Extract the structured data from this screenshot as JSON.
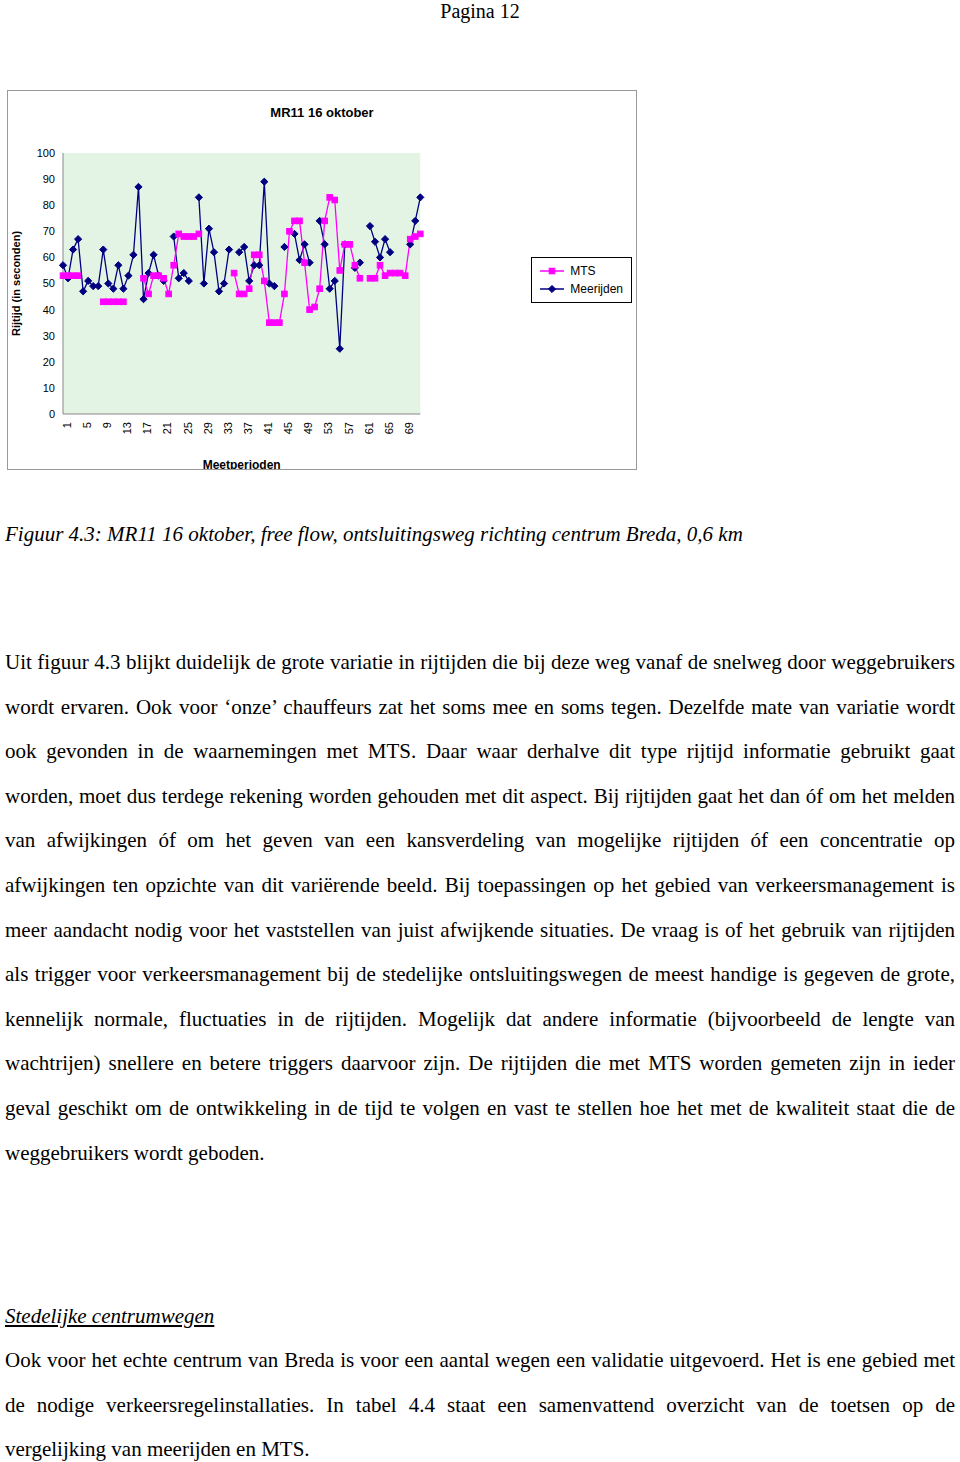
{
  "header": "Pagina 12",
  "chart_data": {
    "type": "line",
    "title": "MR11 16 oktober",
    "x_label": "Meetperioden",
    "y_label": "Rijtijd (in seconden)",
    "categories": [
      "1",
      null,
      null,
      null,
      "5",
      null,
      null,
      null,
      "9",
      null,
      null,
      null,
      "13",
      null,
      null,
      null,
      "17",
      null,
      null,
      null,
      "21",
      null,
      null,
      null,
      "25",
      null,
      null,
      null,
      "29",
      null,
      null,
      null,
      "33",
      null,
      null,
      null,
      "37",
      null,
      null,
      null,
      "41",
      null,
      null,
      null,
      "45",
      null,
      null,
      null,
      "49",
      null,
      null,
      null,
      "53",
      null,
      null,
      null,
      "57",
      null,
      null,
      null,
      "61",
      null,
      null,
      null,
      "65",
      null,
      null,
      null,
      "69",
      null,
      null,
      null
    ],
    "series": [
      {
        "name": "Meerijden",
        "color": "#000080",
        "marker": "diamond",
        "values": [
          57,
          52,
          63,
          67,
          47,
          51,
          49,
          49,
          63,
          50,
          48,
          57,
          48,
          53,
          61,
          87,
          44,
          54,
          61,
          53,
          51,
          null,
          68,
          52,
          54,
          51,
          null,
          83,
          50,
          71,
          62,
          47,
          50,
          63,
          null,
          62,
          64,
          51,
          57,
          57,
          89,
          50,
          49,
          null,
          64,
          null,
          69,
          59,
          65,
          58,
          null,
          74,
          65,
          48,
          51,
          25,
          65,
          null,
          56,
          58,
          null,
          72,
          66,
          60,
          67,
          62,
          null,
          null,
          null,
          65,
          74,
          83
        ]
      },
      {
        "name": "MTS",
        "color": "#ff00ff",
        "marker": "square",
        "values": [
          53,
          53,
          53,
          53,
          null,
          null,
          null,
          null,
          43,
          43,
          43,
          43,
          43,
          null,
          null,
          null,
          52,
          46,
          53,
          53,
          52,
          46,
          57,
          69,
          68,
          68,
          68,
          69,
          null,
          null,
          null,
          null,
          null,
          null,
          54,
          46,
          46,
          48,
          61,
          61,
          51,
          35,
          35,
          35,
          46,
          70,
          74,
          74,
          58,
          40,
          41,
          48,
          74,
          83,
          82,
          55,
          65,
          65,
          57,
          52,
          null,
          52,
          52,
          57,
          53,
          54,
          54,
          54,
          53,
          67,
          68,
          69
        ]
      }
    ],
    "ylim": [
      0,
      100
    ],
    "yticks": [
      0,
      10,
      20,
      30,
      40,
      50,
      60,
      70,
      80,
      90,
      100
    ],
    "grid": false,
    "legend": "right"
  },
  "caption": "Figuur 4.3: MR11 16 oktober, free flow, ontsluitingsweg richting centrum Breda, 0,6 km",
  "paragraph": "Uit figuur 4.3 blijkt duidelijk de grote variatie in rijtijden die bij deze weg vanaf de snelweg door weggebruikers wordt ervaren. Ook voor ‘onze’ chauffeurs zat het soms mee en soms tegen. Dezelfde mate van variatie wordt ook gevonden in de waarnemingen met MTS. Daar waar derhalve dit type rijtijd informatie gebruikt gaat worden, moet dus terdege rekening worden gehouden met dit aspect. Bij rijtijden gaat het dan óf om het melden van afwijkingen óf om het geven van een kansverdeling van mogelijke rijtijden óf een concentratie op afwijkingen ten opzichte van dit variërende beeld. Bij toepassingen op het gebied van verkeersmanagement is meer aandacht nodig voor het vaststellen van juist afwijkende situaties. De vraag is of het gebruik van rijtijden als trigger voor verkeersmanagement bij de stedelijke ontsluitingswegen de meest handige is gegeven de grote, kennelijk normale, fluctuaties in de rijtijden. Mogelijk dat andere informatie (bijvoorbeeld de lengte van wachtrijen) snellere en betere triggers daarvoor zijn. De rijtijden die met MTS worden gemeten zijn in ieder geval geschikt om de ontwikkeling in de tijd te volgen en vast te stellen hoe het met de kwaliteit staat die de weggebruikers wordt geboden.",
  "section_heading": "Stedelijke centrumwegen",
  "section_paragraph": "Ook voor het echte centrum van Breda is voor een aantal wegen een validatie uitgevoerd. Het is ene gebied met de nodige verkeersregelinstallaties. In tabel 4.4 staat een samenvattend overzicht van de toetsen op de vergelijking van meerijden en MTS."
}
